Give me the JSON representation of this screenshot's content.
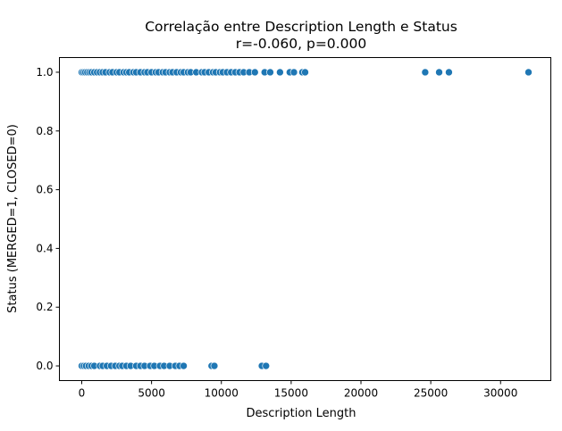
{
  "chart_data": {
    "type": "scatter",
    "title": "Correlação entre Description Length e Status",
    "subtitle": "r=-0.060, p=0.000",
    "xlabel": "Description Length",
    "ylabel": "Status (MERGED=1, CLOSED=0)",
    "xlim": [
      -1600,
      33600
    ],
    "ylim": [
      -0.05,
      1.05
    ],
    "xticks": [
      0,
      5000,
      10000,
      15000,
      20000,
      25000,
      30000
    ],
    "xtick_labels": [
      "0",
      "5000",
      "10000",
      "15000",
      "20000",
      "25000",
      "30000"
    ],
    "yticks": [
      0.0,
      0.2,
      0.4,
      0.6,
      0.8,
      1.0
    ],
    "ytick_labels": [
      "0.0",
      "0.2",
      "0.4",
      "0.6",
      "0.8",
      "1.0"
    ],
    "grid": false,
    "marker_color": "#1f77b4",
    "series": [
      {
        "x": [
          0,
          120,
          250,
          400,
          550,
          700,
          900,
          1100,
          1300,
          1500,
          1700,
          2000,
          2200,
          2500,
          2700,
          3000,
          3200,
          3400,
          3700,
          3900,
          4200,
          4500,
          4700,
          5000,
          5300,
          5500,
          5800,
          6000,
          6300,
          6500,
          6800,
          7100,
          7300,
          7600,
          7800,
          8200,
          8600,
          8800,
          9100,
          9400,
          9600,
          9900,
          10100,
          10400,
          10700,
          11000,
          11300,
          11600,
          12000,
          12400,
          13100,
          13500,
          14200,
          14900,
          15200,
          15800,
          16000,
          24600,
          25600,
          26300,
          32000
        ],
        "y": [
          1,
          1,
          1,
          1,
          1,
          1,
          1,
          1,
          1,
          1,
          1,
          1,
          1,
          1,
          1,
          1,
          1,
          1,
          1,
          1,
          1,
          1,
          1,
          1,
          1,
          1,
          1,
          1,
          1,
          1,
          1,
          1,
          1,
          1,
          1,
          1,
          1,
          1,
          1,
          1,
          1,
          1,
          1,
          1,
          1,
          1,
          1,
          1,
          1,
          1,
          1,
          1,
          1,
          1,
          1,
          1,
          1,
          1,
          1,
          1,
          1
        ]
      },
      {
        "x": [
          0,
          150,
          300,
          500,
          700,
          900,
          1300,
          1500,
          1800,
          2100,
          2400,
          2700,
          2900,
          3200,
          3500,
          3900,
          4200,
          4500,
          4900,
          5200,
          5600,
          5900,
          6300,
          6700,
          7000,
          7300,
          9300,
          9500,
          12900,
          13200
        ],
        "y": [
          0,
          0,
          0,
          0,
          0,
          0,
          0,
          0,
          0,
          0,
          0,
          0,
          0,
          0,
          0,
          0,
          0,
          0,
          0,
          0,
          0,
          0,
          0,
          0,
          0,
          0,
          0,
          0,
          0,
          0
        ]
      }
    ]
  }
}
